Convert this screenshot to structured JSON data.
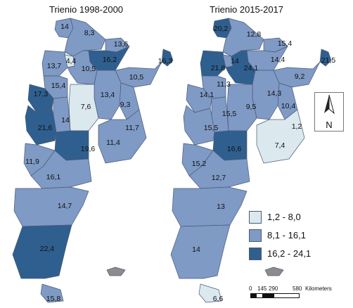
{
  "maps": [
    {
      "title": "Trienio 1998-2000",
      "labels": [
        {
          "id": "jujuy",
          "text": "14"
        },
        {
          "id": "salta",
          "text": "8,3"
        },
        {
          "id": "formosa",
          "text": "13,6"
        },
        {
          "id": "tucuman",
          "text": "4,4"
        },
        {
          "id": "catamarca",
          "text": "13,7"
        },
        {
          "id": "sde",
          "text": "10,5"
        },
        {
          "id": "chaco",
          "text": "16,2"
        },
        {
          "id": "misiones",
          "text": "16,3"
        },
        {
          "id": "corrientes",
          "text": "10,5"
        },
        {
          "id": "larioja",
          "text": "15,4"
        },
        {
          "id": "santafe",
          "text": "13,4"
        },
        {
          "id": "sanjuan",
          "text": "17,3"
        },
        {
          "id": "cordoba",
          "text": "7,6"
        },
        {
          "id": "entrerios",
          "text": "9,3"
        },
        {
          "id": "mendoza",
          "text": "21,6"
        },
        {
          "id": "sanluis",
          "text": "14"
        },
        {
          "id": "bsas",
          "text": "11,7"
        },
        {
          "id": "lapampa",
          "text": "19,6"
        },
        {
          "id": "bsas2",
          "text": "11,4"
        },
        {
          "id": "neuquen",
          "text": "11,9"
        },
        {
          "id": "rionegro",
          "text": "16,1"
        },
        {
          "id": "chubut",
          "text": "14,7"
        },
        {
          "id": "santacruz",
          "text": "22,4"
        },
        {
          "id": "tdf",
          "text": "15,8"
        }
      ]
    },
    {
      "title": "Trienio 2015-2017",
      "labels": [
        {
          "id": "jujuy",
          "text": "20,2"
        },
        {
          "id": "salta",
          "text": "12,8"
        },
        {
          "id": "formosa",
          "text": "15,4"
        },
        {
          "id": "catamarca",
          "text": "21,8"
        },
        {
          "id": "tucuman",
          "text": "14"
        },
        {
          "id": "sde",
          "text": "24,1"
        },
        {
          "id": "chaco",
          "text": "14,4"
        },
        {
          "id": "misiones",
          "text": "21,5"
        },
        {
          "id": "corrientes",
          "text": "9,2"
        },
        {
          "id": "larioja",
          "text": "14,1"
        },
        {
          "id": "sanjuan",
          "text": "11,3"
        },
        {
          "id": "santafe",
          "text": "14,3"
        },
        {
          "id": "entrerios",
          "text": "10,4"
        },
        {
          "id": "sanluis",
          "text": "15,5"
        },
        {
          "id": "cordoba",
          "text": "9,5"
        },
        {
          "id": "caba",
          "text": "1,2"
        },
        {
          "id": "mendoza",
          "text": "15,5"
        },
        {
          "id": "bsas",
          "text": "7,4"
        },
        {
          "id": "lapampa",
          "text": "16,6"
        },
        {
          "id": "neuquen",
          "text": "15,2"
        },
        {
          "id": "rionegro",
          "text": "12,7"
        },
        {
          "id": "chubut",
          "text": "13"
        },
        {
          "id": "santacruz",
          "text": "14"
        },
        {
          "id": "tdf",
          "text": "6,6"
        }
      ]
    }
  ],
  "legend": [
    {
      "label": "1,2 - 8,0",
      "color": "#dbe8ee"
    },
    {
      "label": "8,1 - 16,1",
      "color": "#7f9ac4"
    },
    {
      "label": "16,2 - 24,1",
      "color": "#2f5f8e"
    }
  ],
  "north_label": "N",
  "scale": {
    "ticks": [
      "0",
      "145",
      "290",
      "580"
    ],
    "unit": "Kilometers"
  }
}
